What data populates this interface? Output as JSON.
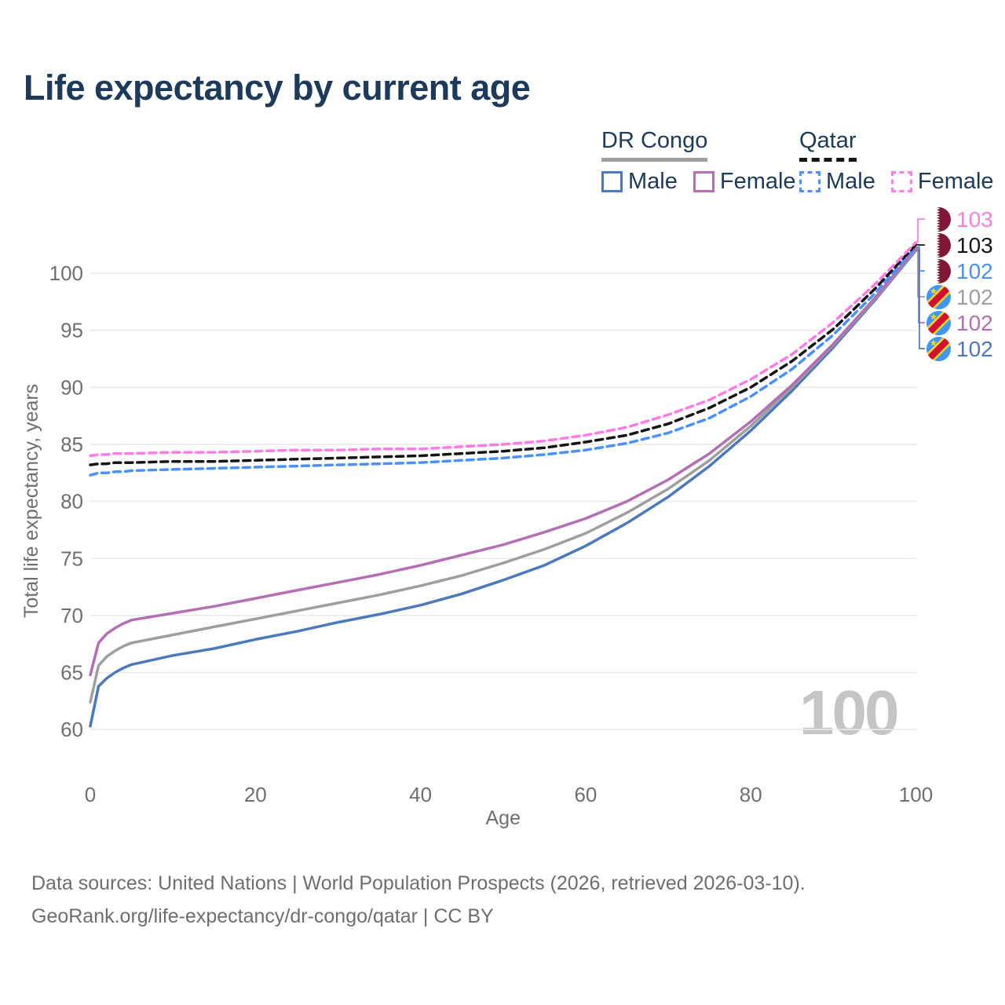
{
  "title": "Life expectancy by current age",
  "legend": {
    "groups": [
      {
        "name": "DR Congo",
        "line_style": "solid",
        "line_color": "#9e9e9e",
        "items": [
          {
            "label": "Male",
            "color": "#4c79bb",
            "style": "solid"
          },
          {
            "label": "Female",
            "color": "#b26fb4",
            "style": "solid"
          }
        ]
      },
      {
        "name": "Qatar",
        "line_style": "dashed",
        "line_color": "#141414",
        "items": [
          {
            "label": "Male",
            "color": "#4a90ff",
            "style": "dashed"
          },
          {
            "label": "Female",
            "color": "#ff7de3",
            "style": "dashed"
          }
        ]
      }
    ]
  },
  "watermark": "100",
  "footer": {
    "line1": "Data sources: United Nations | World Population Prospects (2026, retrieved 2026-03-10).",
    "line2": "GeoRank.org/life-expectancy/dr-congo/qatar | CC BY"
  },
  "colors": {
    "title_text": "#1d3a5a",
    "axis_text": "#6f6f6f",
    "grid": "#e9e9e9",
    "watermark": "#c5c5c5",
    "footer_text": "#6e6e6e"
  },
  "chart_data": {
    "type": "line",
    "title": "Life expectancy by current age",
    "xlabel": "Age",
    "ylabel": "Total life expectancy, years",
    "x_ticks": [
      0,
      20,
      40,
      60,
      80,
      100
    ],
    "y_ticks": [
      60,
      65,
      70,
      75,
      80,
      85,
      90,
      95,
      100
    ],
    "xlim": [
      0,
      100
    ],
    "ylim": [
      58,
      103
    ],
    "grid": "horizontal",
    "legend_position": "top-right",
    "ages": [
      0,
      1,
      2,
      3,
      4,
      5,
      10,
      15,
      20,
      25,
      30,
      35,
      40,
      45,
      50,
      55,
      60,
      65,
      70,
      75,
      80,
      85,
      90,
      95,
      100
    ],
    "series": [
      {
        "name": "DR Congo Male",
        "color": "#4c79bb",
        "dash": false,
        "values": [
          60.3,
          63.8,
          64.5,
          65.0,
          65.4,
          65.7,
          66.5,
          67.1,
          67.9,
          68.6,
          69.4,
          70.1,
          70.9,
          71.9,
          73.1,
          74.4,
          76.1,
          78.1,
          80.4,
          83.1,
          86.2,
          89.7,
          93.5,
          97.6,
          102.0
        ]
      },
      {
        "name": "DR Congo Both sexes",
        "color": "#9e9e9e",
        "dash": false,
        "values": [
          62.4,
          65.6,
          66.4,
          66.9,
          67.3,
          67.6,
          68.3,
          69.0,
          69.7,
          70.4,
          71.1,
          71.8,
          72.6,
          73.5,
          74.6,
          75.8,
          77.2,
          79.0,
          81.1,
          83.6,
          86.6,
          90.0,
          93.7,
          97.7,
          102.1
        ]
      },
      {
        "name": "DR Congo Female",
        "color": "#b26fb4",
        "dash": false,
        "values": [
          64.8,
          67.6,
          68.4,
          68.9,
          69.3,
          69.6,
          70.2,
          70.8,
          71.5,
          72.2,
          72.9,
          73.6,
          74.4,
          75.3,
          76.2,
          77.3,
          78.5,
          80.0,
          81.9,
          84.2,
          87.0,
          90.2,
          93.8,
          97.8,
          102.2
        ]
      },
      {
        "name": "Qatar Male",
        "color": "#4a90ff",
        "dash": true,
        "values": [
          82.3,
          82.5,
          82.5,
          82.6,
          82.6,
          82.7,
          82.8,
          82.9,
          83.0,
          83.1,
          83.2,
          83.3,
          83.4,
          83.6,
          83.8,
          84.1,
          84.5,
          85.1,
          86.0,
          87.3,
          89.2,
          91.6,
          94.6,
          98.2,
          102.3
        ]
      },
      {
        "name": "Qatar Both sexes",
        "color": "#141414",
        "dash": true,
        "values": [
          83.2,
          83.3,
          83.3,
          83.4,
          83.4,
          83.4,
          83.5,
          83.5,
          83.6,
          83.7,
          83.8,
          83.9,
          84.0,
          84.2,
          84.4,
          84.7,
          85.2,
          85.8,
          86.8,
          88.2,
          90.0,
          92.3,
          95.1,
          98.6,
          102.5
        ]
      },
      {
        "name": "Qatar Female",
        "color": "#ff7de3",
        "dash": true,
        "values": [
          84.0,
          84.1,
          84.1,
          84.2,
          84.2,
          84.2,
          84.3,
          84.3,
          84.4,
          84.5,
          84.5,
          84.6,
          84.6,
          84.8,
          85.0,
          85.3,
          85.8,
          86.5,
          87.6,
          88.9,
          90.7,
          92.9,
          95.7,
          99.0,
          102.7
        ]
      }
    ],
    "end_labels": [
      {
        "value": "103",
        "color": "#ff7de3",
        "flag": "qa",
        "series": "Qatar Female"
      },
      {
        "value": "103",
        "color": "#141414",
        "flag": "qa",
        "series": "Qatar Both sexes"
      },
      {
        "value": "102",
        "color": "#4a90ff",
        "flag": "qa",
        "series": "Qatar Male"
      },
      {
        "value": "102",
        "color": "#9e9e9e",
        "flag": "cd",
        "series": "DR Congo Both sexes"
      },
      {
        "value": "102",
        "color": "#b26fb4",
        "flag": "cd",
        "series": "DR Congo Female"
      },
      {
        "value": "102",
        "color": "#4c79bb",
        "flag": "cd",
        "series": "DR Congo Male"
      }
    ]
  }
}
